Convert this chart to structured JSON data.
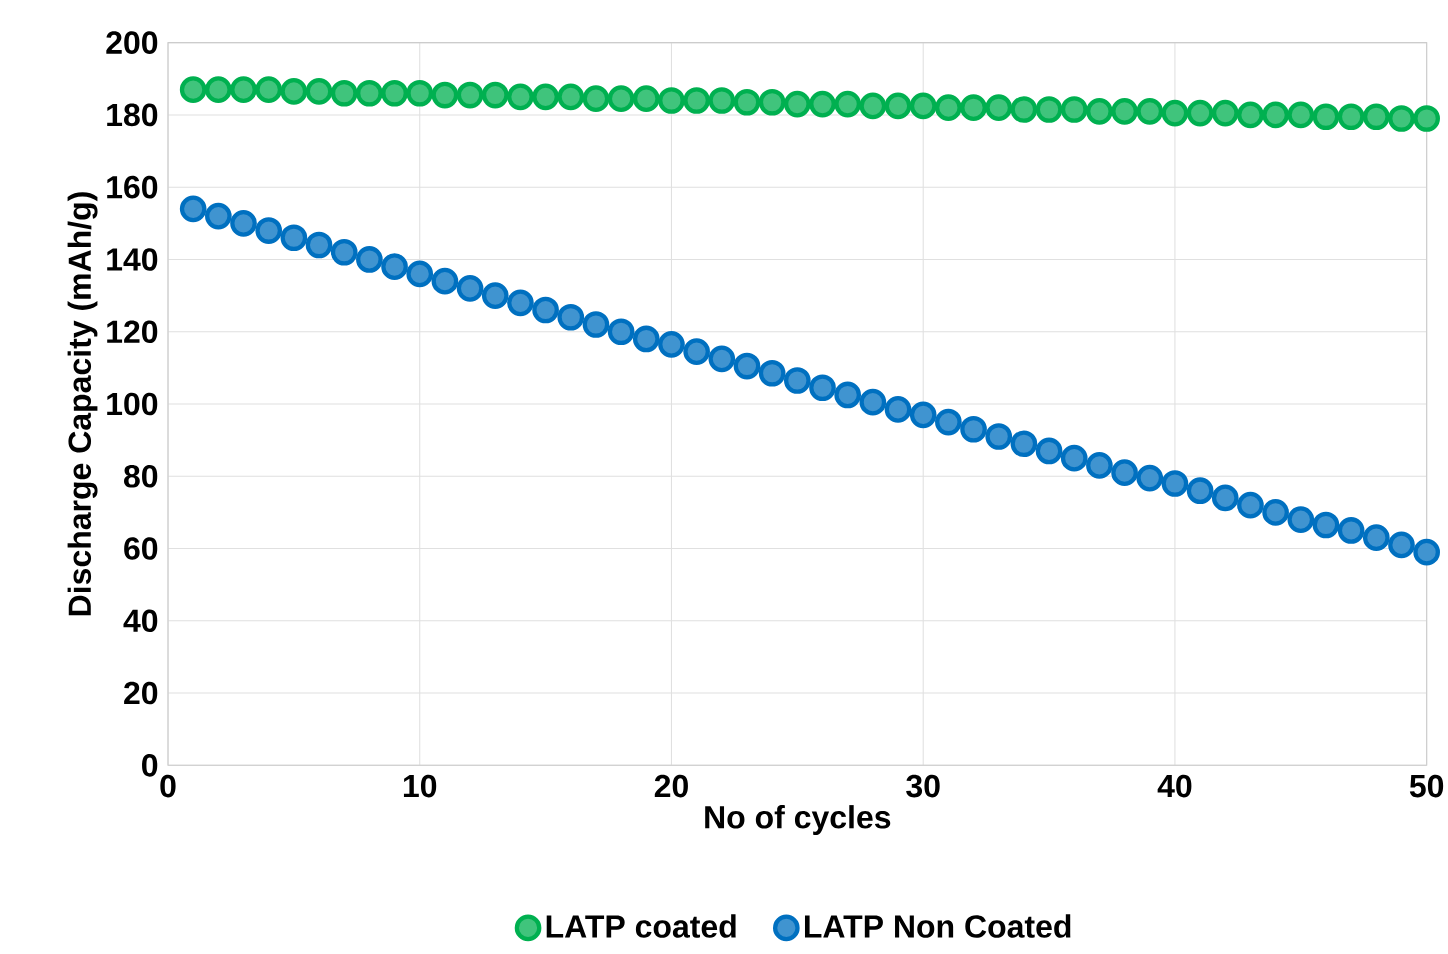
{
  "chart_data": {
    "type": "scatter",
    "xlabel": "No of cycles",
    "ylabel": "Discharge Capacity (mAh/g)",
    "x": [
      1,
      2,
      3,
      4,
      5,
      6,
      7,
      8,
      9,
      10,
      11,
      12,
      13,
      14,
      15,
      16,
      17,
      18,
      19,
      20,
      21,
      22,
      23,
      24,
      25,
      26,
      27,
      28,
      29,
      30,
      31,
      32,
      33,
      34,
      35,
      36,
      37,
      38,
      39,
      40,
      41,
      42,
      43,
      44,
      45,
      46,
      47,
      48,
      49,
      50
    ],
    "series": [
      {
        "name": "LATP coated",
        "color": "#00b050",
        "values": [
          187,
          187,
          187,
          187,
          186.5,
          186.5,
          186,
          186,
          186,
          186,
          185.5,
          185.5,
          185.5,
          185,
          185,
          185,
          184.5,
          184.5,
          184.5,
          184,
          184,
          184,
          183.5,
          183.5,
          183,
          183,
          183,
          182.5,
          182.5,
          182.5,
          182,
          182,
          182,
          181.5,
          181.5,
          181.5,
          181,
          181,
          181,
          180.5,
          180.5,
          180.5,
          180,
          180,
          180,
          179.5,
          179.5,
          179.5,
          179,
          179
        ]
      },
      {
        "name": "LATP Non Coated",
        "color": "#0070c0",
        "values": [
          154,
          152,
          150,
          148,
          146,
          144,
          142,
          140,
          138,
          136,
          134,
          132,
          130,
          128,
          126,
          124,
          122,
          120,
          118,
          116.5,
          114.5,
          112.5,
          110.5,
          108.5,
          106.5,
          104.5,
          102.5,
          100.5,
          98.5,
          97,
          95,
          93,
          91,
          89,
          87,
          85,
          83,
          81,
          79.5,
          78,
          76,
          74,
          72,
          70,
          68,
          66.5,
          65,
          63,
          61,
          59
        ]
      }
    ],
    "xlim": [
      0,
      50
    ],
    "xticks": [
      0,
      10,
      20,
      30,
      40,
      50
    ],
    "ylim": [
      0,
      200
    ],
    "yticks": [
      0,
      20,
      40,
      60,
      80,
      100,
      120,
      140,
      160,
      180,
      200
    ],
    "grid": true,
    "legend": "bottom",
    "marker": "circle"
  }
}
